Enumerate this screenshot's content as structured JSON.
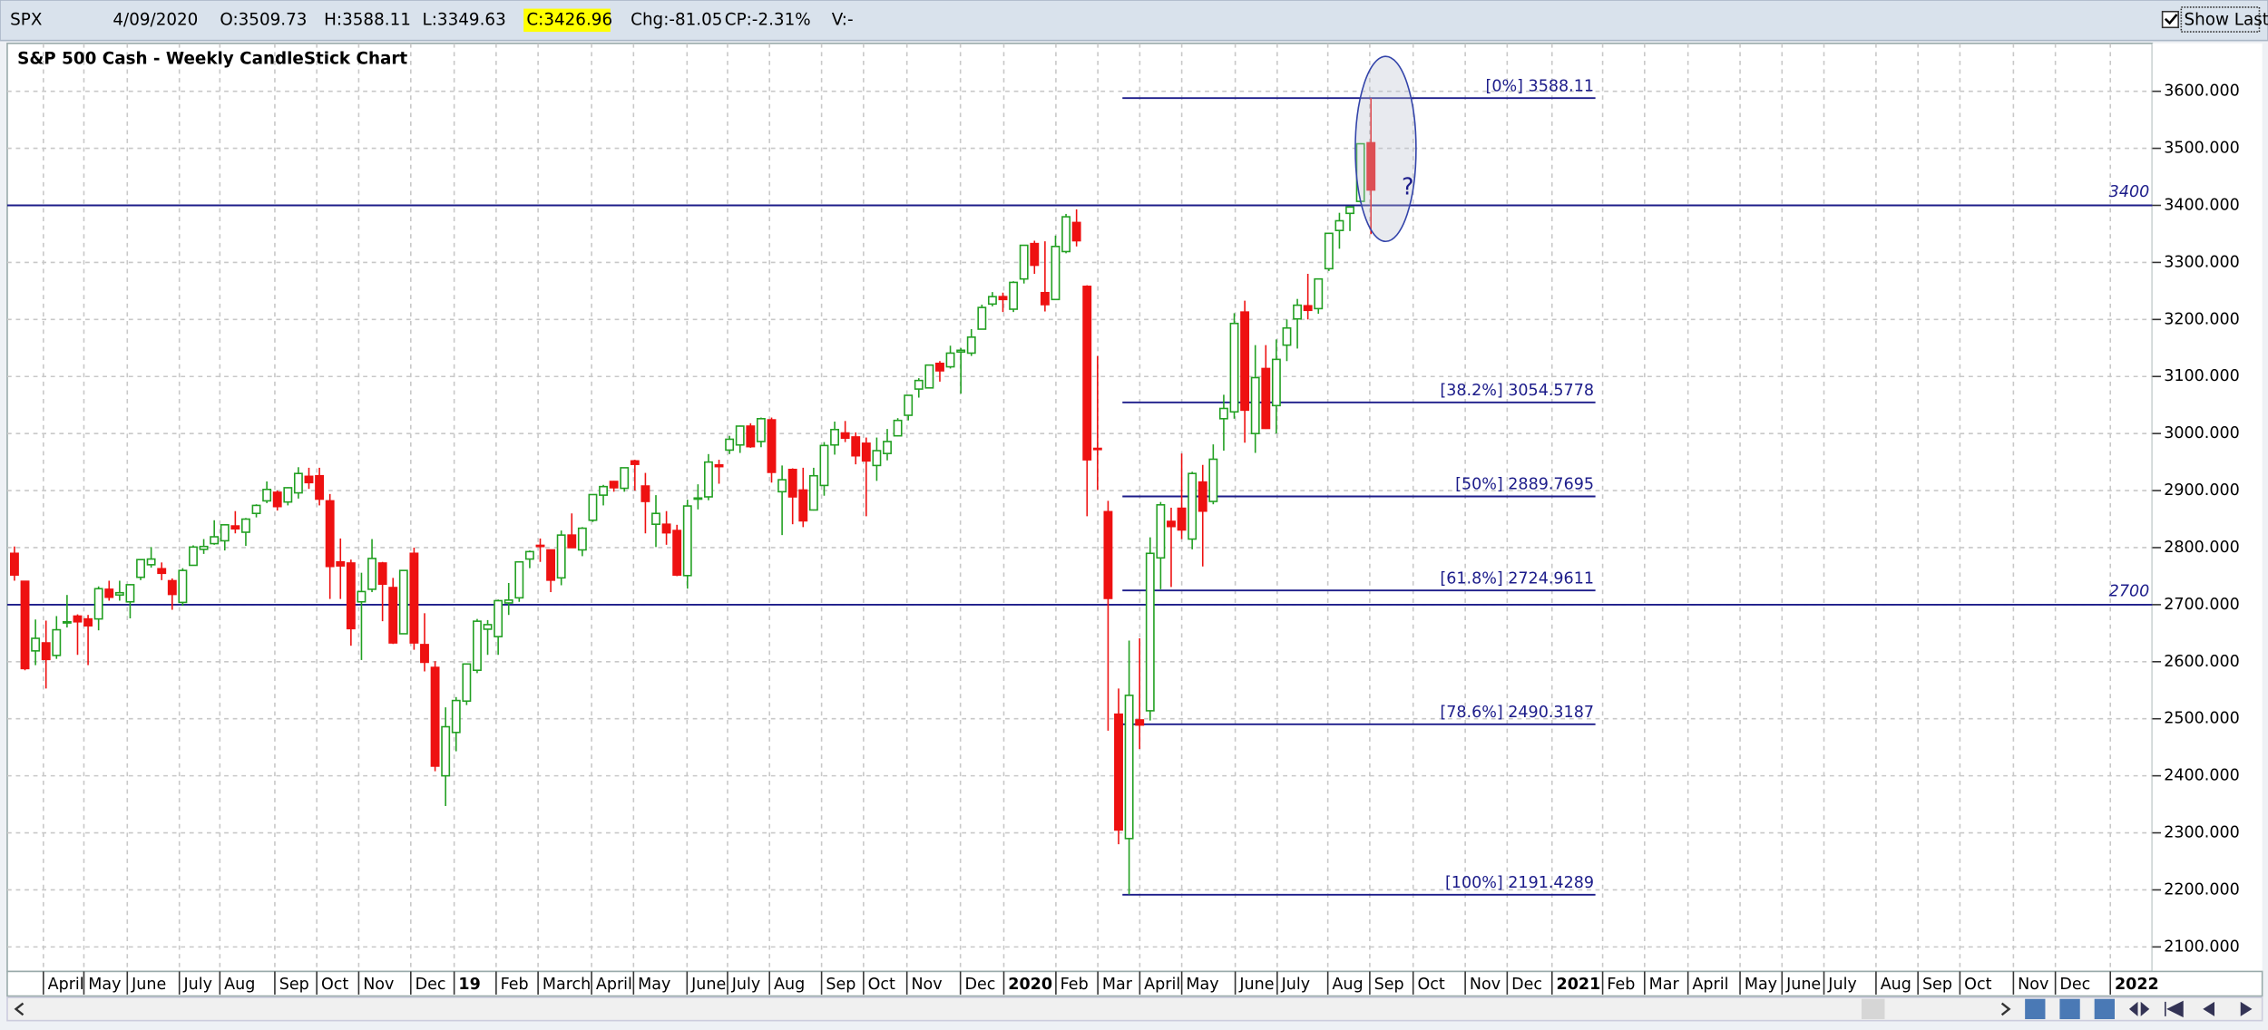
{
  "header": {
    "symbol": "SPX",
    "date": "4/09/2020",
    "open": "O:3509.73",
    "high": "H:3588.11",
    "low": "L:3349.63",
    "close": "C:3426.96",
    "change": "Chg:-81.05",
    "change_percent": "CP:-2.31%",
    "volume": "V:-"
  },
  "toolbar": {
    "show_last": "Show Last"
  },
  "chart_data": {
    "type": "candlestick",
    "title": "S&P 500 Cash - Weekly CandleStick Chart",
    "up_color": "#22a022",
    "down_color": "#ee1111",
    "line_color": "#1c1c8a",
    "grid": true,
    "ylim": [
      2057,
      3684
    ],
    "yticks": [
      {
        "value": 2100,
        "label": "2100.000"
      },
      {
        "value": 2200,
        "label": "2200.000"
      },
      {
        "value": 2300,
        "label": "2300.000"
      },
      {
        "value": 2400,
        "label": "2400.000"
      },
      {
        "value": 2500,
        "label": "2500.000"
      },
      {
        "value": 2600,
        "label": "2600.000"
      },
      {
        "value": 2700,
        "label": "2700.000"
      },
      {
        "value": 2800,
        "label": "2800.000"
      },
      {
        "value": 2900,
        "label": "2900.000"
      },
      {
        "value": 3000,
        "label": "3000.000"
      },
      {
        "value": 3100,
        "label": "3100.000"
      },
      {
        "value": 3200,
        "label": "3200.000"
      },
      {
        "value": 3300,
        "label": "3300.000"
      },
      {
        "value": 3400,
        "label": "3400.000"
      },
      {
        "value": 3500,
        "label": "3500.000"
      },
      {
        "value": 3600,
        "label": "3600.000"
      }
    ],
    "x_labels": [
      "April",
      "May",
      "June",
      "July",
      "Aug",
      "Sep",
      "Oct",
      "Nov",
      "Dec",
      "19",
      "Feb",
      "March",
      "April",
      "May",
      "June",
      "July",
      "Aug",
      "Sep",
      "Oct",
      "Nov",
      "Dec",
      "2020",
      "Feb",
      "Mar",
      "April",
      "May",
      "June",
      "July",
      "Aug",
      "Sep",
      "Oct",
      "Nov",
      "Dec",
      "2021",
      "Feb",
      "Mar",
      "April",
      "May",
      "June",
      "July",
      "Aug",
      "Sep",
      "Oct",
      "Nov",
      "Dec",
      "2022"
    ],
    "candles": {
      "open": [
        2790,
        2741,
        2619,
        2633,
        2611,
        2670,
        2680,
        2675,
        2675,
        2727,
        2717,
        2705,
        2748,
        2770,
        2763,
        2742,
        2704,
        2769,
        2797,
        2807,
        2812,
        2838,
        2827,
        2860,
        2882,
        2897,
        2880,
        2896,
        2925,
        2926,
        2882,
        2775,
        2773,
        2705,
        2727,
        2773,
        2730,
        2649,
        2790,
        2630,
        2590,
        2400,
        2476,
        2531,
        2585,
        2657,
        2644,
        2703,
        2712,
        2780,
        2804,
        2796,
        2747,
        2822,
        2796,
        2848,
        2892,
        2916,
        2904,
        2952,
        2908,
        2841,
        2841,
        2830,
        2751,
        2886,
        2889,
        2945,
        2971,
        2980,
        3013,
        2986,
        3024,
        2898,
        2937,
        2901,
        2866,
        2909,
        2980,
        3001,
        2994,
        2983,
        2944,
        2965,
        2996,
        3032,
        3078,
        3080,
        3123,
        3117,
        3143,
        3141,
        3183,
        3227,
        3240,
        3218,
        3271,
        3333,
        3247,
        3235,
        3319,
        3370,
        3258,
        2974,
        2863,
        2508,
        2290,
        2498,
        2514,
        2782,
        2846,
        2869,
        2815,
        2915,
        2881,
        3026,
        3038,
        3213,
        3000,
        3114,
        3049,
        3155,
        3201,
        3224,
        3219,
        3289,
        3356,
        3386,
        3407,
        3509.73
      ],
      "high": [
        2802,
        2741,
        2674,
        2672,
        2680,
        2717,
        2683,
        2682,
        2732,
        2742,
        2742,
        2736,
        2779,
        2801,
        2774,
        2746,
        2764,
        2804,
        2815,
        2848,
        2841,
        2864,
        2852,
        2876,
        2916,
        2900,
        2906,
        2941,
        2940,
        2940,
        2894,
        2816,
        2779,
        2756,
        2815,
        2775,
        2747,
        2761,
        2800,
        2685,
        2601,
        2520,
        2538,
        2597,
        2675,
        2673,
        2709,
        2738,
        2775,
        2795,
        2816,
        2796,
        2830,
        2860,
        2836,
        2893,
        2910,
        2917,
        2940,
        2954,
        2931,
        2892,
        2864,
        2840,
        2884,
        2911,
        2964,
        2954,
        2996,
        3014,
        3018,
        3028,
        3028,
        2944,
        2939,
        2940,
        2940,
        2985,
        3021,
        3022,
        3002,
        2993,
        2993,
        3008,
        3027,
        3067,
        3097,
        3120,
        3127,
        3154,
        3150,
        3183,
        3226,
        3248,
        3247,
        3267,
        3330,
        3338,
        3337,
        3347,
        3385,
        3393,
        3260,
        3136,
        2882,
        2553,
        2637,
        2641,
        2818,
        2880,
        2870,
        2965,
        2933,
        2945,
        2981,
        3068,
        3211,
        3233,
        3155,
        3155,
        3165,
        3200,
        3236,
        3280,
        3272,
        3352,
        3387,
        3399,
        3509,
        3588.11
      ],
      "low": [
        2742,
        2585,
        2594,
        2553,
        2605,
        2660,
        2612,
        2594,
        2655,
        2707,
        2707,
        2676,
        2743,
        2765,
        2743,
        2691,
        2698,
        2769,
        2789,
        2805,
        2795,
        2825,
        2803,
        2853,
        2878,
        2865,
        2874,
        2886,
        2903,
        2874,
        2710,
        2710,
        2628,
        2603,
        2722,
        2671,
        2631,
        2649,
        2621,
        2583,
        2408,
        2347,
        2443,
        2524,
        2580,
        2612,
        2612,
        2682,
        2705,
        2764,
        2775,
        2722,
        2734,
        2800,
        2785,
        2845,
        2874,
        2898,
        2898,
        2900,
        2825,
        2801,
        2805,
        2750,
        2728,
        2867,
        2883,
        2912,
        2964,
        2966,
        2975,
        2976,
        2914,
        2822,
        2841,
        2836,
        2865,
        2891,
        2963,
        2985,
        2946,
        2855,
        2917,
        2953,
        2995,
        3023,
        3063,
        3079,
        3091,
        3114,
        3070,
        3136,
        3183,
        3223,
        3213,
        3213,
        3263,
        3280,
        3214,
        3235,
        3316,
        3328,
        2855,
        2901,
        2479,
        2280,
        2192,
        2447,
        2497,
        2727,
        2731,
        2815,
        2797,
        2767,
        2876,
        2970,
        3026,
        2984,
        2966,
        3008,
        3000,
        3127,
        3149,
        3200,
        3210,
        3285,
        3324,
        3355,
        3405,
        3349.63
      ],
      "close": [
        2752,
        2588,
        2641,
        2604,
        2656,
        2670,
        2670,
        2663,
        2728,
        2713,
        2721,
        2735,
        2779,
        2780,
        2755,
        2718,
        2760,
        2801,
        2802,
        2819,
        2840,
        2833,
        2850,
        2874,
        2902,
        2872,
        2905,
        2930,
        2914,
        2885,
        2767,
        2768,
        2658,
        2723,
        2781,
        2736,
        2633,
        2760,
        2633,
        2599,
        2417,
        2486,
        2532,
        2596,
        2671,
        2665,
        2707,
        2708,
        2775,
        2793,
        2803,
        2743,
        2822,
        2800,
        2834,
        2893,
        2907,
        2905,
        2940,
        2946,
        2881,
        2860,
        2826,
        2752,
        2873,
        2887,
        2950,
        2942,
        2990,
        3013,
        2977,
        3026,
        2932,
        2919,
        2889,
        2847,
        2926,
        2979,
        3007,
        2992,
        2961,
        2952,
        2970,
        2986,
        3023,
        3067,
        3093,
        3120,
        3110,
        3141,
        3146,
        3169,
        3221,
        3240,
        3235,
        3265,
        3330,
        3295,
        3226,
        3328,
        3380,
        3338,
        2954,
        2972,
        2711,
        2305,
        2541,
        2489,
        2790,
        2875,
        2837,
        2831,
        2930,
        2864,
        2955,
        3044,
        3193,
        3041,
        3098,
        3009,
        3130,
        3185,
        3225,
        3216,
        3271,
        3351,
        3373,
        3397,
        3508,
        3426.96
      ]
    },
    "horizontal_lines": [
      3400,
      2700
    ],
    "fib_levels": [
      {
        "label": "[0%] 3588.11",
        "value": 3588.11
      },
      {
        "label": "[38.2%] 3054.5778",
        "value": 3054.5778
      },
      {
        "label": "[50%] 2889.7695",
        "value": 2889.7695
      },
      {
        "label": "[61.8%] 2724.9611",
        "value": 2724.9611
      },
      {
        "label": "[78.6%] 2490.3187",
        "value": 2490.3187
      },
      {
        "label": "[100%] 2191.4289",
        "value": 2191.4289
      }
    ],
    "annotation": "?"
  }
}
